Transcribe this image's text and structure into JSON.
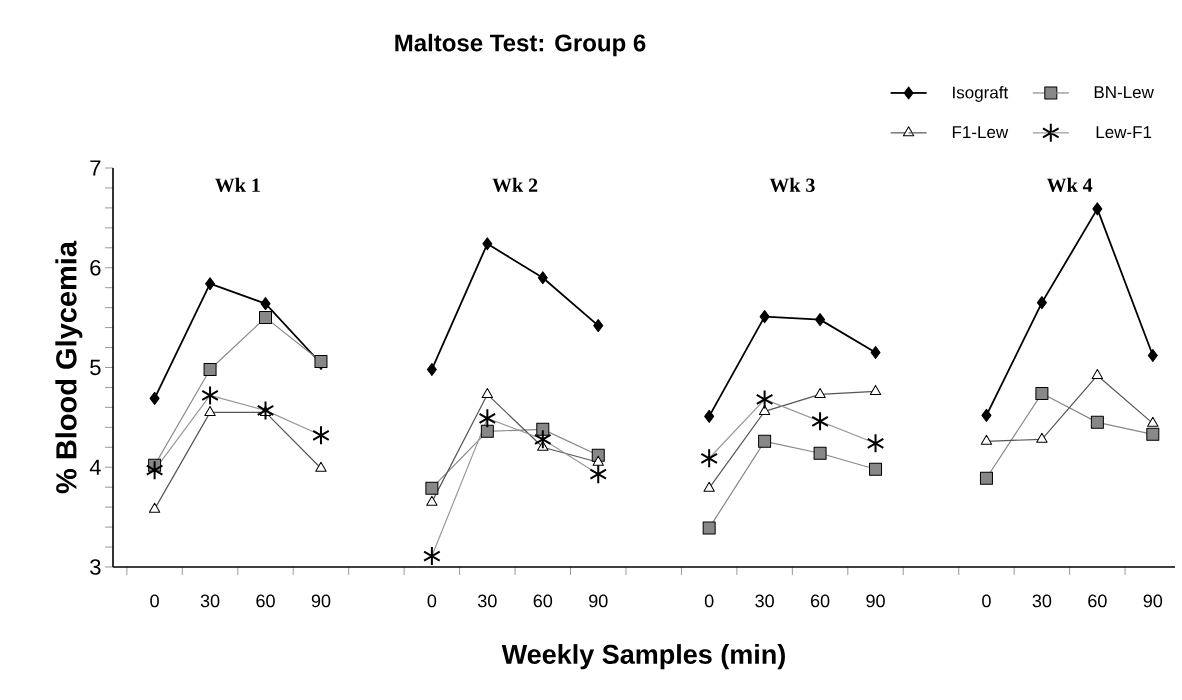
{
  "chart_data": {
    "type": "line",
    "title": "Maltose Test: Group 6",
    "xlabel": "Weekly Samples (min)",
    "ylabel": "% Blood Glycemia",
    "categories": [
      "0",
      "30",
      "60",
      "90",
      null,
      "0",
      "30",
      "60",
      "90",
      null,
      "0",
      "30",
      "60",
      "90",
      null,
      "0",
      "30",
      "60",
      "90"
    ],
    "series": [
      {
        "name": "Isograft",
        "color": "#000000",
        "marker": "diamond",
        "values": [
          4.69,
          5.84,
          5.64,
          5.04,
          null,
          4.98,
          6.24,
          5.9,
          5.42,
          null,
          4.51,
          5.51,
          5.48,
          5.15,
          null,
          4.52,
          5.65,
          6.59,
          5.12
        ]
      },
      {
        "name": "BN-Lew",
        "color": "#888888",
        "marker": "square",
        "values": [
          4.02,
          4.98,
          5.5,
          5.06,
          null,
          3.79,
          4.36,
          4.38,
          4.12,
          null,
          3.39,
          4.26,
          4.14,
          3.98,
          null,
          3.89,
          4.74,
          4.45,
          4.33
        ]
      },
      {
        "name": "F1-Lew",
        "color": "#555555",
        "marker": "triangle",
        "values": [
          3.58,
          4.55,
          4.55,
          3.99,
          null,
          3.65,
          4.73,
          4.2,
          4.05,
          null,
          3.79,
          4.56,
          4.73,
          4.76,
          null,
          4.26,
          4.28,
          4.92,
          4.44
        ]
      },
      {
        "name": "Lew-F1",
        "color": "#999999",
        "marker": "cross",
        "values": [
          3.97,
          4.72,
          4.57,
          4.32,
          null,
          3.11,
          4.49,
          4.28,
          3.93,
          null,
          4.09,
          4.68,
          4.46,
          4.24,
          null,
          null,
          null,
          null,
          null
        ]
      }
    ],
    "ylim": [
      3,
      7
    ],
    "yticks": [
      3,
      4,
      5,
      6,
      7
    ],
    "legend": "top right",
    "grid": false,
    "line_style": "solid",
    "annotations": [
      "Wk 1",
      "Wk 2",
      "Wk 3",
      "Wk 4"
    ]
  }
}
